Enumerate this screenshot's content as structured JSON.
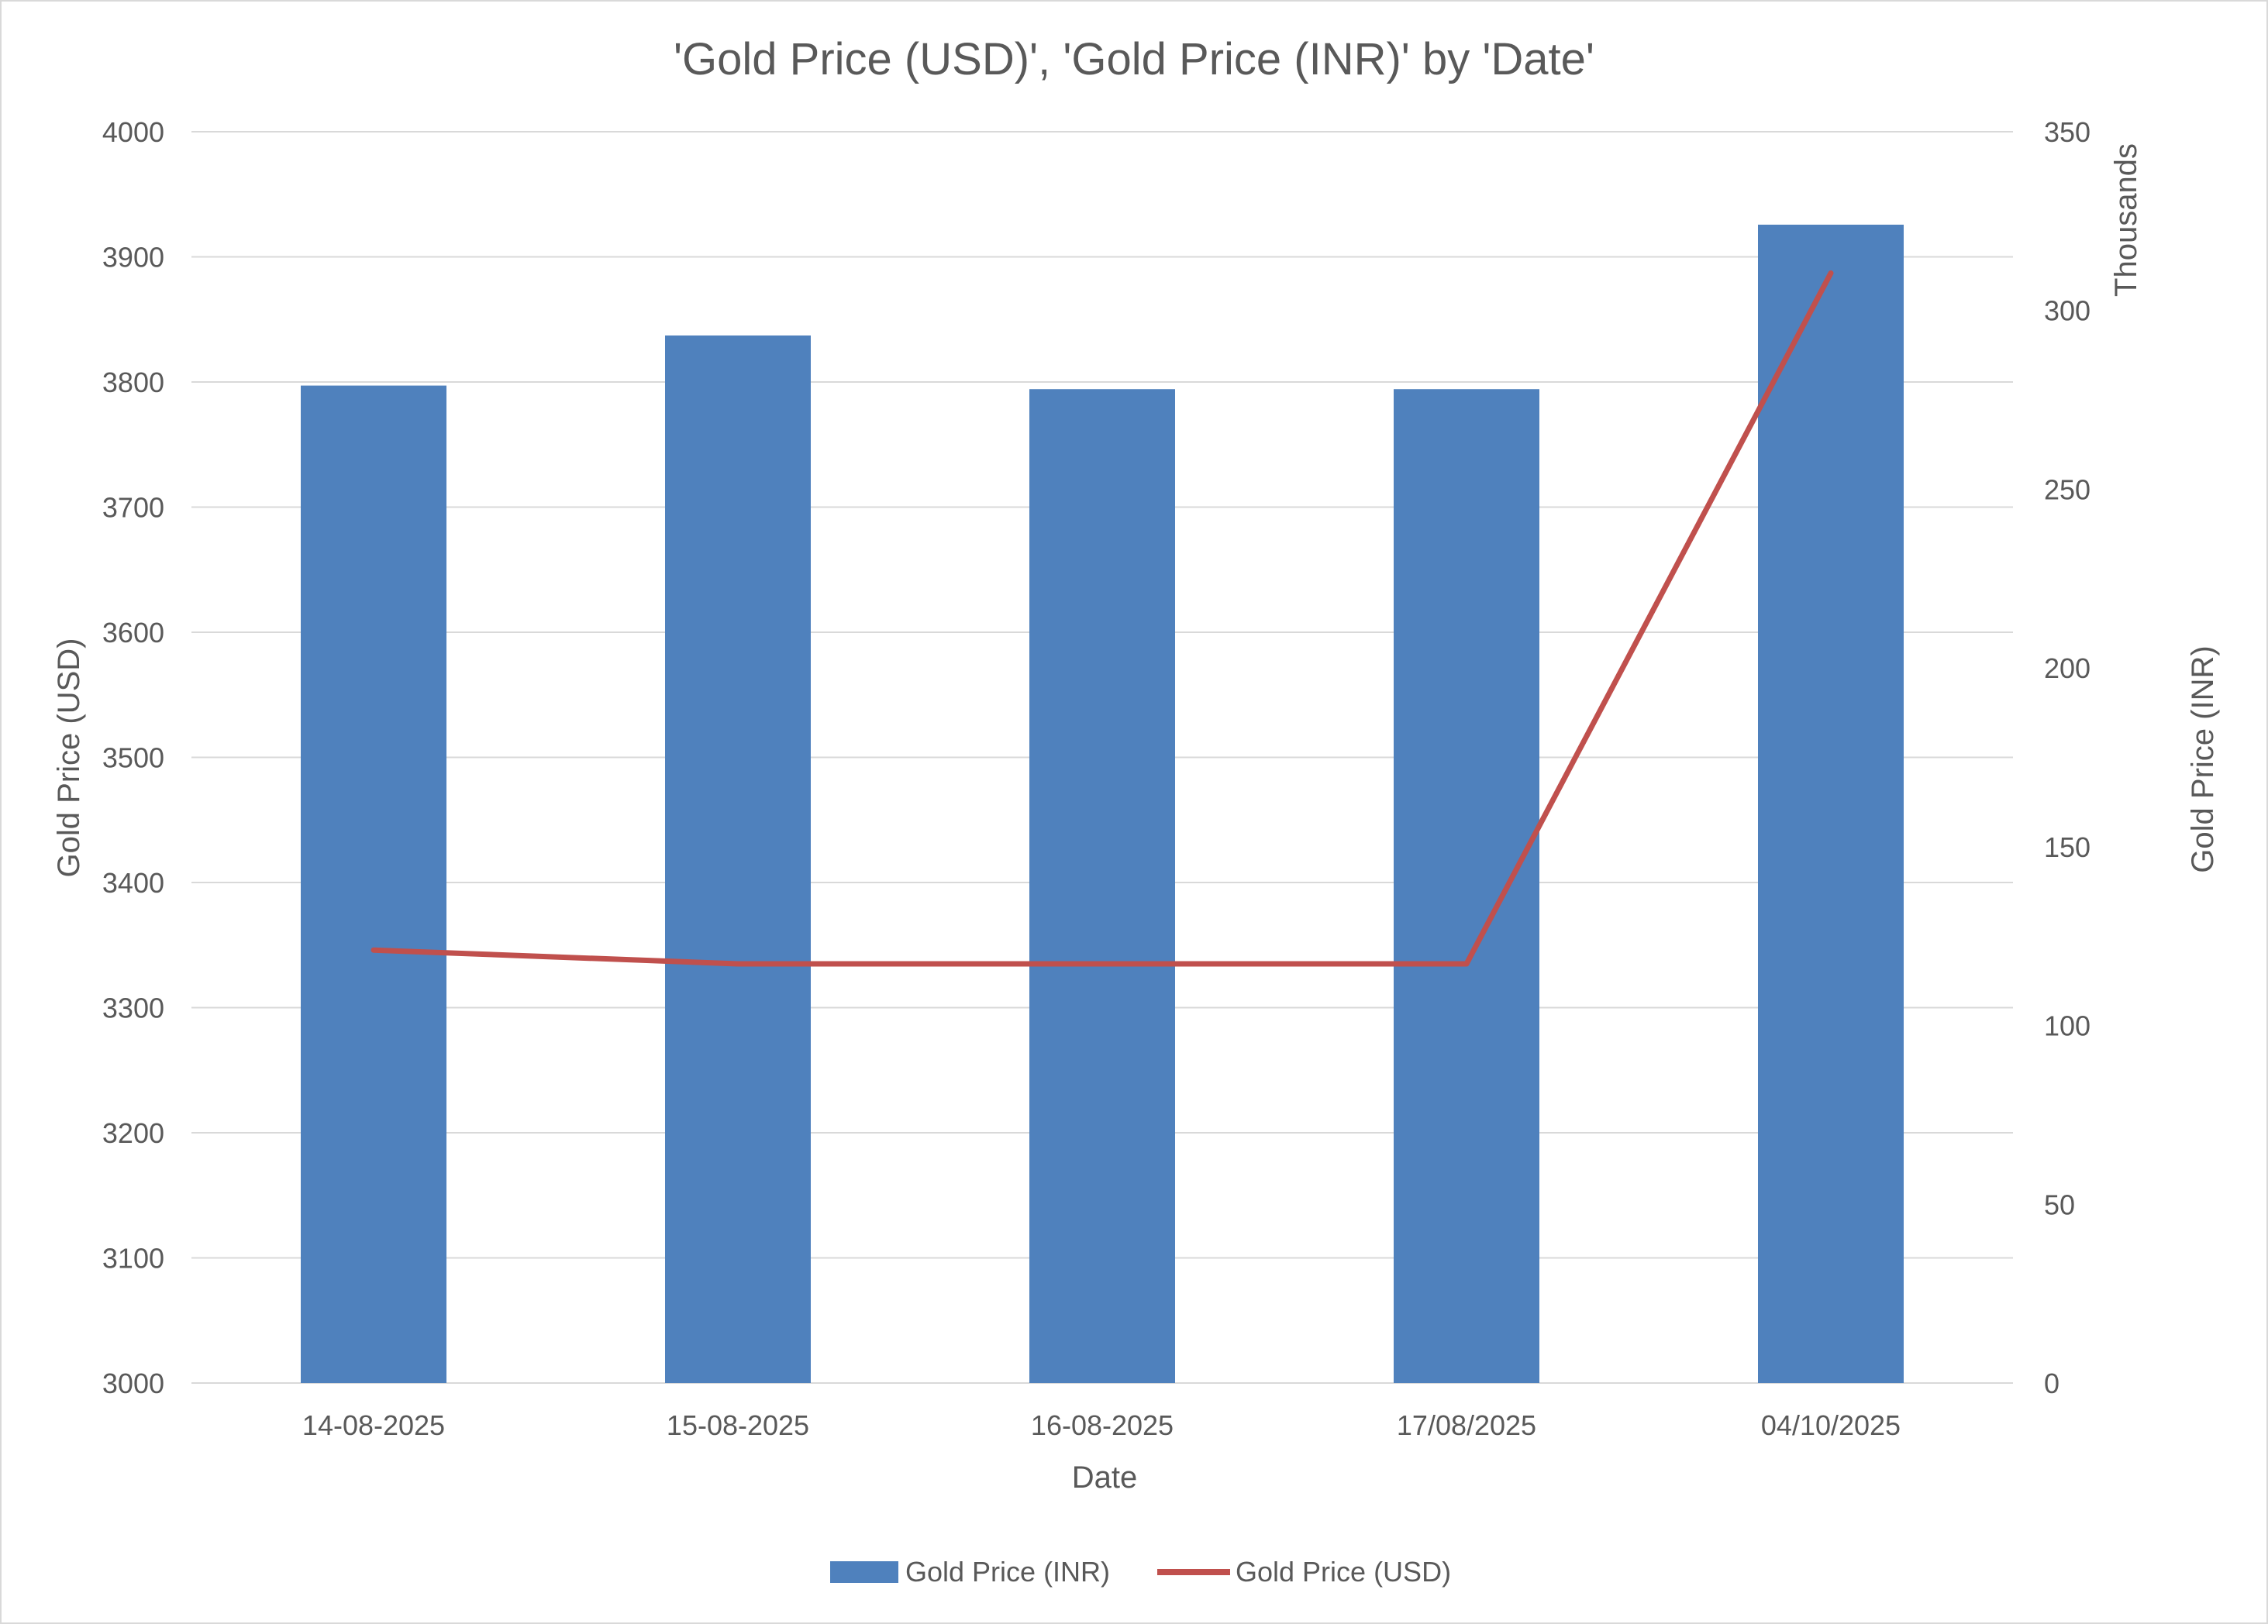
{
  "chart_data": {
    "type": "bar+line",
    "title": "'Gold Price (USD)', 'Gold Price (INR)' by 'Date'",
    "xlabel": "Date",
    "categories": [
      "14-08-2025",
      "15-08-2025",
      "16-08-2025",
      "17/08/2025",
      "04/10/2025"
    ],
    "y_left": {
      "label": "Gold Price (USD)",
      "range": [
        3000,
        4000
      ],
      "ticks": [
        "3000",
        "3100",
        "3200",
        "3300",
        "3400",
        "3500",
        "3600",
        "3700",
        "3800",
        "3900",
        "4000"
      ]
    },
    "y_right": {
      "label": "Gold Price (INR)",
      "units_label": "Thousands",
      "range": [
        0,
        350
      ],
      "ticks": [
        "0",
        "50",
        "100",
        "150",
        "200",
        "250",
        "300",
        "350"
      ]
    },
    "series": [
      {
        "name": "Gold Price (INR)",
        "kind": "bar",
        "axis": "right",
        "color": "#4f81bd",
        "values": [
          279000,
          293000,
          278000,
          278000,
          324000
        ]
      },
      {
        "name": "Gold Price (USD)",
        "kind": "line",
        "axis": "left",
        "color": "#c0504d",
        "values": [
          3346,
          3335,
          3335,
          3335,
          3887
        ]
      }
    ],
    "grid": true,
    "legend_position": "bottom"
  }
}
